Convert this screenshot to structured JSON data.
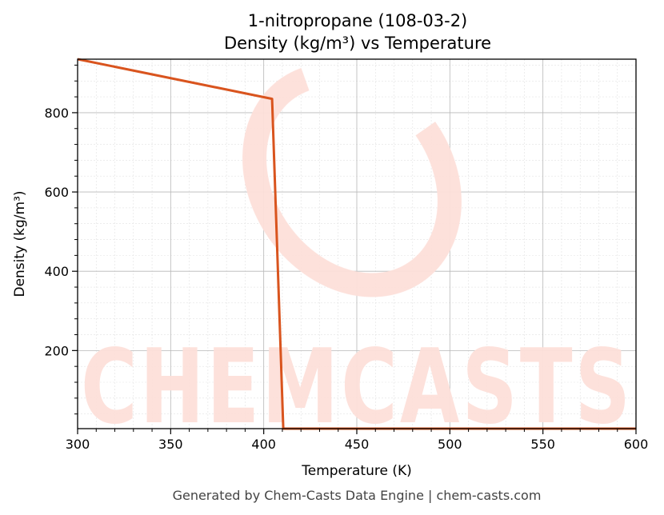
{
  "chart_data": {
    "type": "line",
    "title": "1-nitropropane (108-03-2)",
    "subtitle": "Density (kg/m³) vs Temperature",
    "xlabel": "Temperature (K)",
    "ylabel": "Density (kg/m³)",
    "xlim": [
      300,
      600
    ],
    "ylim": [
      3,
      935
    ],
    "x_ticks": [
      300,
      350,
      400,
      450,
      500,
      550,
      600
    ],
    "y_ticks": [
      200,
      400,
      600,
      800
    ],
    "grid": true,
    "legend": "none",
    "series": [
      {
        "color": "#d9541e",
        "x": [
          300,
          404.5,
          410.5,
          600
        ],
        "y": [
          935,
          835,
          3,
          3
        ]
      }
    ]
  },
  "watermark": {
    "text": "CHEMCASTS",
    "color": "#fde0da"
  },
  "footer": "Generated by Chem-Casts Data Engine | chem-casts.com"
}
